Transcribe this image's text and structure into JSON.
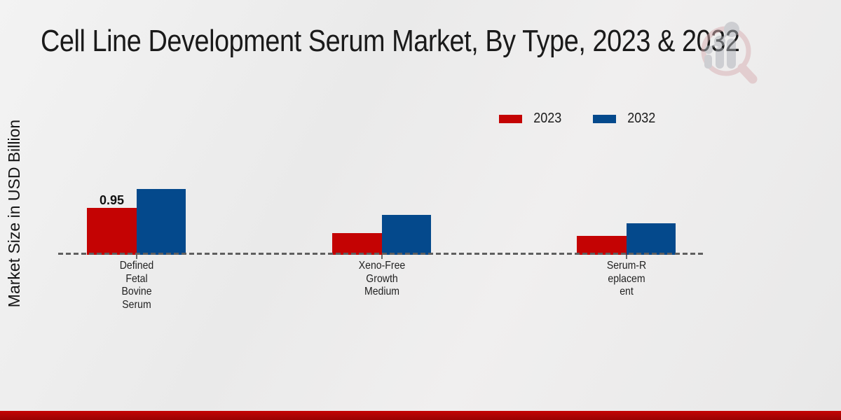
{
  "title": "Cell Line Development Serum Market, By Type, 2023 & 2032",
  "y_axis_label": "Market Size in USD Billion",
  "chart_data": {
    "type": "bar",
    "title": "Cell Line Development Serum Market, By Type, 2023 & 2032",
    "xlabel": "",
    "ylabel": "Market Size in USD Billion",
    "categories": [
      "Defined Fetal Bovine Serum",
      "Xeno-Free Growth Medium",
      "Serum-Replacement"
    ],
    "category_label_lines": [
      [
        "Defined",
        "Fetal",
        "Bovine",
        "Serum"
      ],
      [
        "Xeno-Free",
        "Growth",
        "Medium"
      ],
      [
        "Serum-R",
        "eplacem",
        "ent"
      ]
    ],
    "series": [
      {
        "name": "2023",
        "color": "#c40303",
        "values": [
          0.95,
          0.44,
          0.38
        ]
      },
      {
        "name": "2032",
        "color": "#04498c",
        "values": [
          1.33,
          0.81,
          0.64
        ]
      }
    ],
    "data_labels": [
      {
        "series_index": 0,
        "category_index": 0,
        "text": "0.95"
      }
    ],
    "ylim": [
      0,
      1.4
    ],
    "grid": false,
    "legend_position": "top-right",
    "baseline_style": "dashed"
  },
  "branding": {
    "logo_name": "magnifier-bar-chart-watermark",
    "footer_bar_color": "#b00404"
  },
  "colors": {
    "series_2023": "#c40303",
    "series_2032": "#04498c",
    "baseline_dash": "#5f5f5f",
    "background": "#ededed",
    "title_text": "#1a1a1a"
  }
}
